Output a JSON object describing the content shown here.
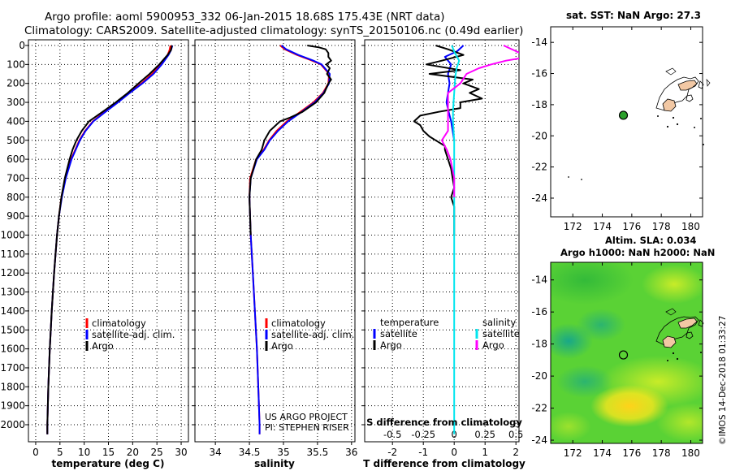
{
  "title_line1": "Argo profile: aoml 5900953_332 06-Jan-2015 18.68S 175.43E (NRT data)",
  "title_line2": "Climatology: CARS2009. Satellite-adjusted climatology: synTS_20150106.nc (0.49d earlier)",
  "credit_line1": "US ARGO PROJECT",
  "credit_line2": "PI: STEPHEN RISER",
  "side_stamp": "©IMOS 14-Dec-2018 01:33:27",
  "colors": {
    "climatology": "#ff0000",
    "satellite": "#0000ff",
    "argo": "#000000",
    "sat_salinity": "#00e5ee",
    "argo_salinity": "#ff00ff"
  },
  "chart_data": [
    {
      "id": "temperature",
      "type": "line",
      "xlabel": "temperature (deg C)",
      "ylabel": "",
      "xlim": [
        -1.5,
        31.5
      ],
      "ylim": [
        0,
        2080
      ],
      "xticks": [
        0,
        5,
        10,
        15,
        20,
        25,
        30
      ],
      "yticks": [
        0,
        100,
        200,
        300,
        400,
        500,
        600,
        700,
        800,
        900,
        1000,
        1100,
        1200,
        1300,
        1400,
        1500,
        1600,
        1700,
        1800,
        1900,
        2000
      ],
      "ytick_labels": [
        "0",
        "100",
        "200",
        "300",
        "400",
        "500",
        "600",
        "700",
        "800",
        "900",
        "1000",
        "1100",
        "1200",
        "1300",
        "1400",
        "1500",
        "1600",
        "1700",
        "1800",
        "1900",
        "2000"
      ],
      "legend": [
        "climatology",
        "satellite-adj. clim.",
        "Argo"
      ],
      "series": [
        {
          "name": "climatology",
          "color": "#ff0000",
          "depth": [
            0,
            25,
            50,
            100,
            150,
            200,
            250,
            300,
            350,
            400,
            450,
            500,
            600,
            700,
            800,
            900,
            1000,
            1200,
            1400,
            1600,
            1800,
            2000,
            2050
          ],
          "values": [
            27.8,
            27.6,
            27.2,
            25.8,
            24.0,
            21.8,
            19.2,
            16.8,
            14.2,
            11.8,
            10.2,
            9.0,
            7.3,
            6.1,
            5.3,
            4.8,
            4.4,
            3.8,
            3.3,
            2.9,
            2.6,
            2.4,
            2.4
          ]
        },
        {
          "name": "satellite-adj. clim.",
          "color": "#0000ff",
          "depth": [
            0,
            25,
            50,
            100,
            150,
            200,
            250,
            300,
            350,
            400,
            450,
            500,
            600,
            700,
            800,
            900,
            1000,
            1200,
            1400,
            1600,
            1800,
            2000,
            2050
          ],
          "values": [
            28.2,
            27.9,
            27.4,
            26.0,
            24.3,
            22.0,
            19.4,
            17.0,
            14.4,
            11.9,
            10.3,
            9.1,
            7.4,
            6.2,
            5.4,
            4.8,
            4.4,
            3.8,
            3.3,
            2.9,
            2.6,
            2.4,
            2.4
          ]
        },
        {
          "name": "Argo",
          "color": "#000000",
          "depth": [
            0,
            25,
            50,
            100,
            150,
            200,
            250,
            300,
            350,
            400,
            450,
            500,
            550,
            600,
            700,
            800,
            900,
            1000,
            1200,
            1400,
            1600,
            1800,
            2000,
            2050
          ],
          "values": [
            28.1,
            27.9,
            27.2,
            25.5,
            23.5,
            21.2,
            19.0,
            16.5,
            13.8,
            11.0,
            9.5,
            8.4,
            7.6,
            7.0,
            6.0,
            5.3,
            4.8,
            4.4,
            3.8,
            3.3,
            2.9,
            2.6,
            2.4,
            2.4
          ]
        }
      ]
    },
    {
      "id": "salinity",
      "type": "line",
      "xlabel": "salinity",
      "ylabel": "",
      "xlim": [
        33.7,
        36.05
      ],
      "ylim": [
        0,
        2080
      ],
      "xticks": [
        34,
        34.5,
        35,
        35.5,
        36
      ],
      "yticks": [
        0,
        100,
        200,
        300,
        400,
        500,
        600,
        700,
        800,
        900,
        1000,
        1100,
        1200,
        1300,
        1400,
        1500,
        1600,
        1700,
        1800,
        1900,
        2000
      ],
      "legend": [
        "climatology",
        "satellite-adj. clim.",
        "Argo"
      ],
      "series": [
        {
          "name": "climatology",
          "color": "#ff0000",
          "depth": [
            0,
            20,
            50,
            80,
            100,
            150,
            200,
            250,
            300,
            350,
            400,
            450,
            500,
            550,
            600,
            700,
            800,
            900,
            1000,
            1200,
            1400,
            1600,
            1800,
            2000,
            2050
          ],
          "values": [
            34.95,
            35.02,
            35.2,
            35.42,
            35.55,
            35.67,
            35.66,
            35.58,
            35.44,
            35.25,
            35.05,
            34.9,
            34.79,
            34.71,
            34.6,
            34.51,
            34.5,
            34.51,
            34.52,
            34.55,
            34.58,
            34.61,
            34.63,
            34.65,
            34.65
          ]
        },
        {
          "name": "satellite-adj. clim.",
          "color": "#0000ff",
          "depth": [
            0,
            20,
            50,
            80,
            100,
            150,
            200,
            250,
            300,
            350,
            400,
            450,
            500,
            550,
            600,
            700,
            800,
            900,
            1000,
            1200,
            1400,
            1600,
            1800,
            2000,
            2050
          ],
          "values": [
            34.97,
            35.04,
            35.22,
            35.44,
            35.56,
            35.68,
            35.67,
            35.59,
            35.46,
            35.27,
            35.07,
            34.92,
            34.8,
            34.72,
            34.61,
            34.52,
            34.5,
            34.51,
            34.52,
            34.55,
            34.58,
            34.61,
            34.63,
            34.65,
            34.65
          ]
        },
        {
          "name": "Argo",
          "color": "#000000",
          "depth": [
            0,
            10,
            20,
            40,
            60,
            80,
            100,
            120,
            150,
            180,
            200,
            250,
            300,
            350,
            380,
            400,
            450,
            500,
            550,
            600,
            700,
            800,
            900,
            1000
          ],
          "values": [
            35.35,
            35.52,
            35.62,
            35.66,
            35.66,
            35.7,
            35.63,
            35.68,
            35.64,
            35.7,
            35.66,
            35.6,
            35.48,
            35.28,
            35.1,
            34.95,
            34.8,
            34.72,
            34.68,
            34.6,
            34.52,
            34.5,
            34.51,
            34.52
          ]
        }
      ]
    },
    {
      "id": "difference",
      "type": "line",
      "xlabel": "T difference from climatology",
      "xlabel2": "S difference from climatology",
      "xlim": [
        -2.9,
        2.1
      ],
      "ylim": [
        0,
        2080
      ],
      "xticks": [
        -2,
        -1,
        0,
        1,
        2
      ],
      "xticks2_values": [
        -0.5,
        -0.25,
        0,
        0.25,
        0.5
      ],
      "xticks2_labels": [
        "-0.5",
        "-0.25",
        "0",
        "0.25",
        "0.5"
      ],
      "yticks": [
        0,
        100,
        200,
        300,
        400,
        500,
        600,
        700,
        800,
        900,
        1000,
        1100,
        1200,
        1300,
        1400,
        1500,
        1600,
        1700,
        1800,
        1900,
        2000
      ],
      "legend_left_title": "temperature",
      "legend_right_title": "salinity",
      "legend": [
        "satellite",
        "Argo",
        "satellite",
        "Argo"
      ],
      "series": [
        {
          "name": "T satellite",
          "color": "#0000ff",
          "depth": [
            0,
            30,
            60,
            100,
            150,
            200,
            250,
            300,
            350,
            400,
            450,
            500
          ],
          "values": [
            0.3,
            0.1,
            -0.3,
            -0.1,
            -0.2,
            -0.15,
            -0.2,
            -0.25,
            -0.18,
            -0.1,
            -0.05,
            0
          ]
        },
        {
          "name": "T Argo",
          "color": "#000000",
          "depth": [
            0,
            20,
            50,
            80,
            100,
            130,
            150,
            180,
            200,
            230,
            250,
            280,
            300,
            330,
            350,
            370,
            400,
            420,
            450,
            480,
            500,
            530,
            550,
            600,
            650,
            700,
            750,
            800,
            850,
            900,
            950,
            1000
          ],
          "values": [
            -0.6,
            -0.2,
            0.3,
            -0.4,
            -0.9,
            0.2,
            -0.8,
            0.6,
            0.3,
            0.8,
            0.5,
            0.9,
            0.2,
            0.2,
            -0.5,
            -1.1,
            -1.3,
            -1.1,
            -1.0,
            -0.8,
            -0.6,
            -0.3,
            -0.3,
            -0.2,
            -0.1,
            -0.05,
            0.0,
            -0.1,
            0.0,
            0.0,
            0.0,
            0.0
          ]
        },
        {
          "name": "S satellite",
          "color": "#00e5ee",
          "depth": [
            0,
            40,
            80,
            120,
            160,
            200,
            250,
            300,
            350,
            400,
            500,
            600,
            800,
            1000,
            1500,
            2050
          ],
          "values": [
            -0.02,
            0.005,
            0.04,
            0.02,
            0.01,
            0.005,
            0,
            -0.005,
            -0.01,
            -0.01,
            0,
            0,
            0,
            0,
            0,
            0
          ]
        },
        {
          "name": "S Argo",
          "color": "#ff00ff",
          "depth": [
            0,
            30,
            60,
            80,
            100,
            120,
            150,
            200,
            250,
            300,
            350,
            400,
            450,
            500,
            550,
            600,
            700,
            800
          ],
          "values": [
            0.4,
            0.5,
            0.6,
            0.42,
            0.3,
            0.2,
            0.1,
            0.05,
            -0.05,
            -0.05,
            -0.05,
            -0.05,
            -0.05,
            -0.1,
            -0.06,
            -0.03,
            0,
            0
          ]
        }
      ]
    },
    {
      "id": "sst_map",
      "type": "scatter",
      "title": "sat. SST: NaN Argo: 27.3",
      "xlim": [
        170.5,
        180.8
      ],
      "ylim": [
        -25.2,
        -13.0
      ],
      "xticks": [
        172,
        174,
        176,
        178,
        180
      ],
      "yticks": [
        -14,
        -16,
        -18,
        -20,
        -22,
        -24
      ],
      "points": [
        {
          "x": 175.43,
          "y": -18.68
        }
      ]
    },
    {
      "id": "sla_map",
      "type": "heatmap",
      "title": "Altim. SLA: 0.034",
      "subtitle": "Argo h1000: NaN h2000: NaN",
      "xlim": [
        170.5,
        180.8
      ],
      "ylim": [
        -24.2,
        -12.9
      ],
      "xticks": [
        172,
        174,
        176,
        178,
        180
      ],
      "yticks": [
        -14,
        -16,
        -18,
        -20,
        -22,
        -24
      ],
      "points": [
        {
          "x": 175.43,
          "y": -18.68
        }
      ]
    }
  ]
}
